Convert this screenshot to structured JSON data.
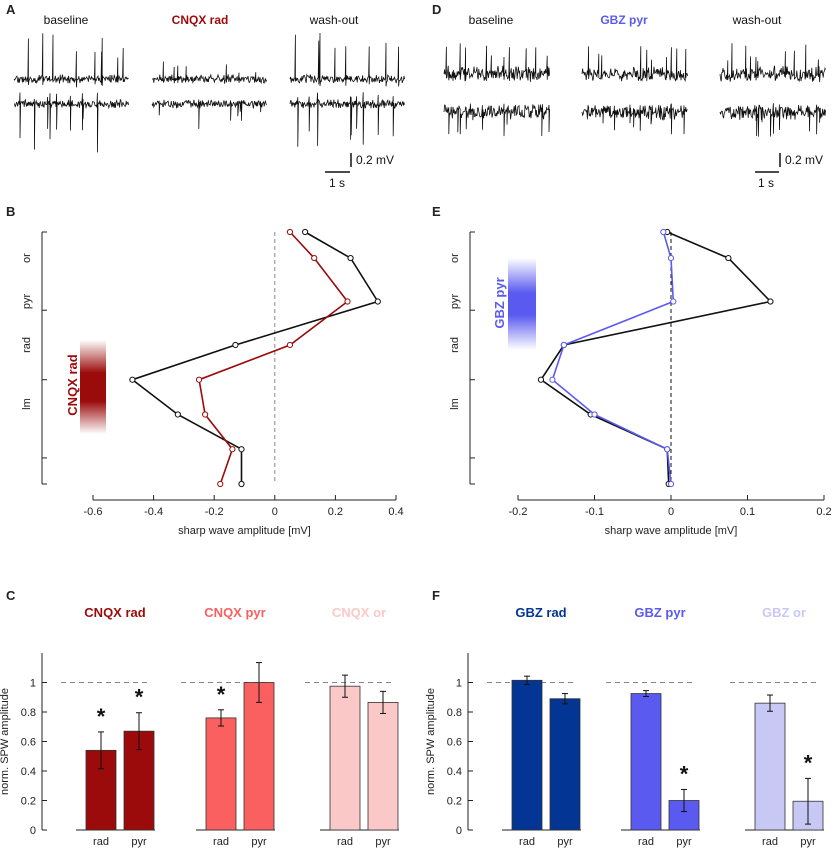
{
  "panel_labels": {
    "A": "A",
    "B": "B",
    "C": "C",
    "D": "D",
    "E": "E",
    "F": "F"
  },
  "colors": {
    "cnqx_rad": "#9b0b0b",
    "cnqx_pyr": "#fa6060",
    "cnqx_or": "#fbc8c8",
    "gbz_rad": "#023594",
    "gbz_pyr": "#5a5af0",
    "gbz_or": "#c8c8f5",
    "black": "#111111",
    "dash": "#888888"
  },
  "panel_A": {
    "conditions": [
      "baseline",
      "CNQX rad",
      "wash-out"
    ],
    "scalebar_v": "0.2 mV",
    "scalebar_h": "1 s"
  },
  "panel_D": {
    "conditions": [
      "baseline",
      "GBZ pyr",
      "wash-out"
    ],
    "scalebar_v": "0.2 mV",
    "scalebar_h": "1 s"
  },
  "chart_data": [
    {
      "id": "B",
      "type": "line",
      "xlabel": "sharp wave amplitude [mV]",
      "xlim": [
        -0.6,
        0.4
      ],
      "xticks": [
        "-0.6",
        "-0.4",
        "-0.2",
        "0",
        "0.2",
        "0.4"
      ],
      "xtick_values": [
        -0.6,
        -0.4,
        -0.2,
        0,
        0.2,
        0.4
      ],
      "layers": [
        "or",
        "pyr",
        "rad",
        "lm"
      ],
      "layer_depths": [
        1.5,
        4,
        6.5,
        9.9
      ],
      "drug_label": "CNQX rad",
      "series": [
        {
          "name": "baseline",
          "color": "#111111",
          "x": [
            0.1,
            0.25,
            0.34,
            -0.13,
            -0.47,
            -0.32,
            -0.11,
            -0.11
          ],
          "depth": [
            0,
            1.5,
            4,
            6.5,
            8.5,
            10.5,
            12.5,
            14.5
          ]
        },
        {
          "name": "CNQX rad",
          "color": "#9b0b0b",
          "x": [
            0.05,
            0.13,
            0.24,
            0.05,
            -0.25,
            -0.23,
            -0.14,
            -0.18
          ],
          "depth": [
            0,
            1.5,
            4,
            6.5,
            8.5,
            10.5,
            12.5,
            14.5
          ]
        }
      ]
    },
    {
      "id": "E",
      "type": "line",
      "xlabel": "sharp wave amplitude [mV]",
      "xlim": [
        -0.2,
        0.2
      ],
      "xticks": [
        "-0.2",
        "-0.1",
        "0",
        "0.1",
        "0.2"
      ],
      "xtick_values": [
        -0.2,
        -0.1,
        0,
        0.1,
        0.2
      ],
      "layers": [
        "or",
        "pyr",
        "rad",
        "lm"
      ],
      "layer_depths": [
        1.5,
        4,
        6.5,
        9.9
      ],
      "drug_label": "GBZ pyr",
      "series": [
        {
          "name": "baseline",
          "color": "#111111",
          "x": [
            -0.005,
            0.075,
            0.13,
            -0.14,
            -0.17,
            -0.105,
            -0.005,
            -0.003
          ],
          "depth": [
            0,
            1.5,
            4,
            6.5,
            8.5,
            10.5,
            12.5,
            14.5
          ]
        },
        {
          "name": "GBZ pyr",
          "color": "#5a5af0",
          "x": [
            -0.01,
            0,
            0.003,
            -0.14,
            -0.155,
            -0.1,
            -0.005,
            0
          ],
          "depth": [
            0,
            1.5,
            4,
            6.5,
            8.5,
            10.5,
            12.5,
            14.5
          ]
        }
      ]
    },
    {
      "id": "C",
      "type": "bar",
      "ylabel": "norm. SPW amplitude",
      "ylim": [
        0,
        1.2
      ],
      "yticks": [
        "0",
        "0.2",
        "0.4",
        "0.6",
        "0.8",
        "1"
      ],
      "ytick_values": [
        0,
        0.2,
        0.4,
        0.6,
        0.8,
        1
      ],
      "categories": [
        "rad",
        "pyr"
      ],
      "groups": [
        {
          "title": "CNQX rad",
          "color": "#9b0b0b",
          "values": [
            0.54,
            0.67
          ],
          "errors": [
            0.125,
            0.125
          ],
          "stars": [
            "*",
            "*"
          ]
        },
        {
          "title": "CNQX pyr",
          "color": "#fa6060",
          "values": [
            0.76,
            1.0
          ],
          "errors": [
            0.055,
            0.135
          ],
          "stars": [
            "*",
            ""
          ]
        },
        {
          "title": "CNQX or",
          "color": "#fbc8c8",
          "values": [
            0.975,
            0.865
          ],
          "errors": [
            0.075,
            0.075
          ],
          "stars": [
            "",
            ""
          ]
        }
      ]
    },
    {
      "id": "F",
      "type": "bar",
      "ylabel": "norm. SPW amplitude",
      "ylim": [
        0,
        1.2
      ],
      "yticks": [
        "0",
        "0.2",
        "0.4",
        "0.6",
        "0.8",
        "1"
      ],
      "ytick_values": [
        0,
        0.2,
        0.4,
        0.6,
        0.8,
        1
      ],
      "categories": [
        "rad",
        "pyr"
      ],
      "groups": [
        {
          "title": "GBZ rad",
          "color": "#023594",
          "values": [
            1.015,
            0.89
          ],
          "errors": [
            0.028,
            0.035
          ],
          "stars": [
            "",
            ""
          ]
        },
        {
          "title": "GBZ pyr",
          "color": "#5a5af0",
          "values": [
            0.925,
            0.2
          ],
          "errors": [
            0.02,
            0.075
          ],
          "stars": [
            "",
            "*"
          ]
        },
        {
          "title": "GBZ or",
          "color": "#c8c8f5",
          "values": [
            0.86,
            0.195
          ],
          "errors": [
            0.055,
            0.155
          ],
          "stars": [
            "",
            "*"
          ]
        }
      ]
    }
  ]
}
